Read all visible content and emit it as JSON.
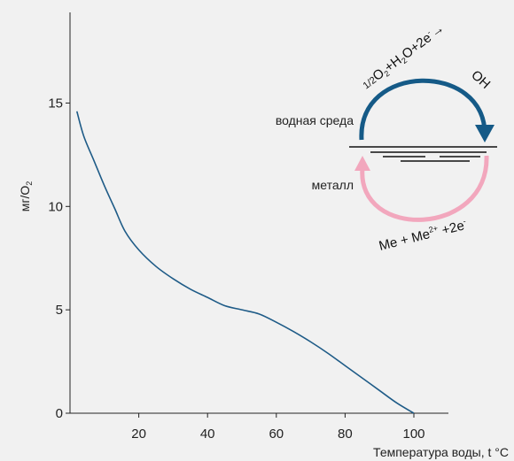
{
  "chart_data": {
    "type": "line",
    "ylabel_main": "мг/O",
    "ylabel_sub": "2",
    "xlabel": "Температура воды, t °С",
    "x_ticks": [
      20,
      40,
      60,
      80,
      100
    ],
    "y_ticks": [
      0,
      5,
      10,
      15
    ],
    "xlim": [
      0,
      110
    ],
    "ylim": [
      0,
      19
    ],
    "series": [
      {
        "x": [
          2,
          4,
          7,
          10,
          13,
          16,
          20,
          25,
          30,
          35,
          40,
          45,
          50,
          55,
          60,
          65,
          70,
          75,
          80,
          85,
          90,
          95,
          100
        ],
        "y": [
          14.6,
          13.4,
          12.2,
          11.0,
          9.9,
          8.8,
          7.9,
          7.1,
          6.5,
          6.0,
          5.6,
          5.2,
          5.0,
          4.8,
          4.4,
          3.95,
          3.45,
          2.9,
          2.3,
          1.7,
          1.1,
          0.5,
          0.0
        ],
        "color": "#1e5b87"
      }
    ],
    "grid": false
  },
  "diagram": {
    "label_water": "водная среда",
    "label_metal": "металл",
    "eq_top": {
      "half": "1/2",
      "o": "O",
      "o_sub": "2",
      "plus1": "+H",
      "h_sub": "2",
      "rest": "O+2e",
      "e_sup": "-",
      "arrow": "→",
      "oh": "OH"
    },
    "eq_bottom": {
      "me": "Me + Me",
      "me_sup": "2+",
      "rest": " +2e",
      "e_sup": "-"
    },
    "colors": {
      "top_arc": "#155a87",
      "bottom_arc": "#f2a7bd",
      "line": "#111111"
    }
  }
}
